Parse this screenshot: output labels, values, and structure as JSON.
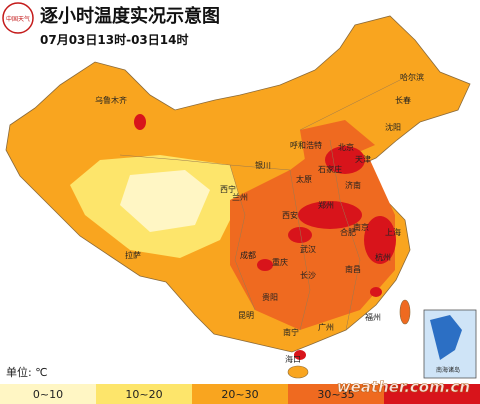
{
  "logo": "中国天气",
  "header": {
    "title": "逐小时温度实况示意图",
    "subtitle": "07月03日13时-03日14时"
  },
  "unit": "单位: ℃",
  "legend": [
    {
      "label": "0~10",
      "color": "#fff6c4"
    },
    {
      "label": "10~20",
      "color": "#fde56b"
    },
    {
      "label": "20~30",
      "color": "#f9a51f"
    },
    {
      "label": "30~35",
      "color": "#ef6a20"
    },
    {
      "color": "#d8141b"
    }
  ],
  "watermark": "weather.com.cn",
  "inset_label": "南海诸岛",
  "cities": [
    "乌鲁木齐",
    "哈尔滨",
    "长春",
    "沈阳",
    "呼和浩特",
    "北京",
    "天津",
    "石家庄",
    "太原",
    "济南",
    "银川",
    "西宁",
    "兰州",
    "郑州",
    "西安",
    "南京",
    "合肥",
    "上海",
    "武汉",
    "成都",
    "重庆",
    "长沙",
    "南昌",
    "杭州",
    "贵阳",
    "昆明",
    "拉萨",
    "南宁",
    "广州",
    "福州",
    "海口"
  ]
}
